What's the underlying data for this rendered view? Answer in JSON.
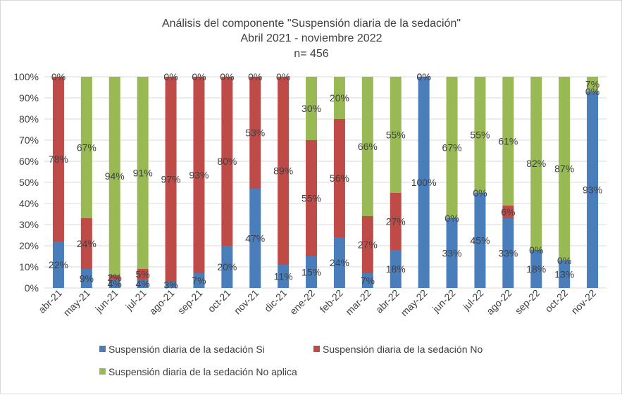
{
  "chart_data": {
    "type": "bar",
    "stacked": true,
    "percent": true,
    "title": [
      "Análisis del componente \"Suspensión diaria de la sedación\"",
      "Abril 2021 - noviembre 2022",
      "n= 456"
    ],
    "xlabel": "",
    "ylabel": "",
    "ylim": [
      0,
      100
    ],
    "yticks": [
      "0%",
      "10%",
      "20%",
      "30%",
      "40%",
      "50%",
      "60%",
      "70%",
      "80%",
      "90%",
      "100%"
    ],
    "grid": true,
    "legend_position": "bottom",
    "categories": [
      "abr-21",
      "may-21",
      "jun-21",
      "jul-21",
      "ago-21",
      "sep-21",
      "oct-21",
      "nov-21",
      "dic-21",
      "ene-22",
      "feb-22",
      "mar-22",
      "abr-22",
      "may-22",
      "jun-22",
      "jul-22",
      "ago-22",
      "sep-22",
      "oct-22",
      "nov-22"
    ],
    "series": [
      {
        "name": "Suspensión diaria de la sedación Si",
        "color": "#4a7ebb",
        "values": [
          22,
          9,
          4,
          4,
          3,
          7,
          20,
          47,
          11,
          15,
          24,
          7,
          18,
          100,
          33,
          45,
          33,
          18,
          13,
          93
        ],
        "labels": [
          "22%",
          "9%",
          "4%",
          "4%",
          "3%",
          "7%",
          "20%",
          "47%",
          "11%",
          "15%",
          "24%",
          "7%",
          "18%",
          "100%",
          "33%",
          "45%",
          "33%",
          "18%",
          "13%",
          "93%"
        ]
      },
      {
        "name": "Suspensión diaria de la sedación No",
        "color": "#be4b48",
        "values": [
          78,
          24,
          2,
          5,
          97,
          93,
          80,
          53,
          89,
          55,
          56,
          27,
          27,
          0,
          0,
          0,
          6,
          0,
          0,
          0
        ],
        "labels": [
          "78%",
          "24%",
          "2%",
          "5%",
          "97%",
          "93%",
          "80%",
          "53%",
          "89%",
          "55%",
          "56%",
          "27%",
          "27%",
          "0%",
          "0%",
          "0%",
          "6%",
          "0%",
          "0%",
          "0%"
        ]
      },
      {
        "name": "Suspensión diaria de la sedación No aplica",
        "color": "#98b954",
        "values": [
          0,
          67,
          94,
          91,
          0,
          0,
          0,
          0,
          0,
          30,
          20,
          66,
          55,
          0,
          67,
          55,
          61,
          82,
          87,
          7
        ],
        "labels": [
          "0%",
          "67%",
          "94%",
          "91%",
          "0%",
          "0%",
          "0%",
          "0%",
          "0%",
          "30%",
          "20%",
          "66%",
          "55%",
          "0%",
          "67%",
          "55%",
          "61%",
          "82%",
          "87%",
          "7%"
        ]
      }
    ]
  }
}
